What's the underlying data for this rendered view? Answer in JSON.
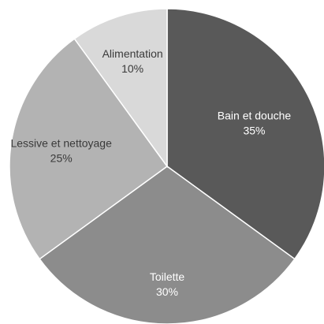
{
  "chart_data": {
    "type": "pie",
    "title": "",
    "start_angle_deg": 0,
    "direction": "clockwise",
    "slices": [
      {
        "label": "Bain et douche",
        "value": 35,
        "value_label": "35%",
        "color": "#595959",
        "text_color": "#ffffff"
      },
      {
        "label": "Toilette",
        "value": 30,
        "value_label": "30%",
        "color": "#8c8c8c",
        "text_color": "#ffffff"
      },
      {
        "label": "Lessive et nettoyage",
        "value": 25,
        "value_label": "25%",
        "color": "#b3b3b3",
        "text_color": "#3a3a3a"
      },
      {
        "label": "Alimentation",
        "value": 10,
        "value_label": "10%",
        "color": "#d9d9d9",
        "text_color": "#3a3a3a"
      }
    ]
  }
}
